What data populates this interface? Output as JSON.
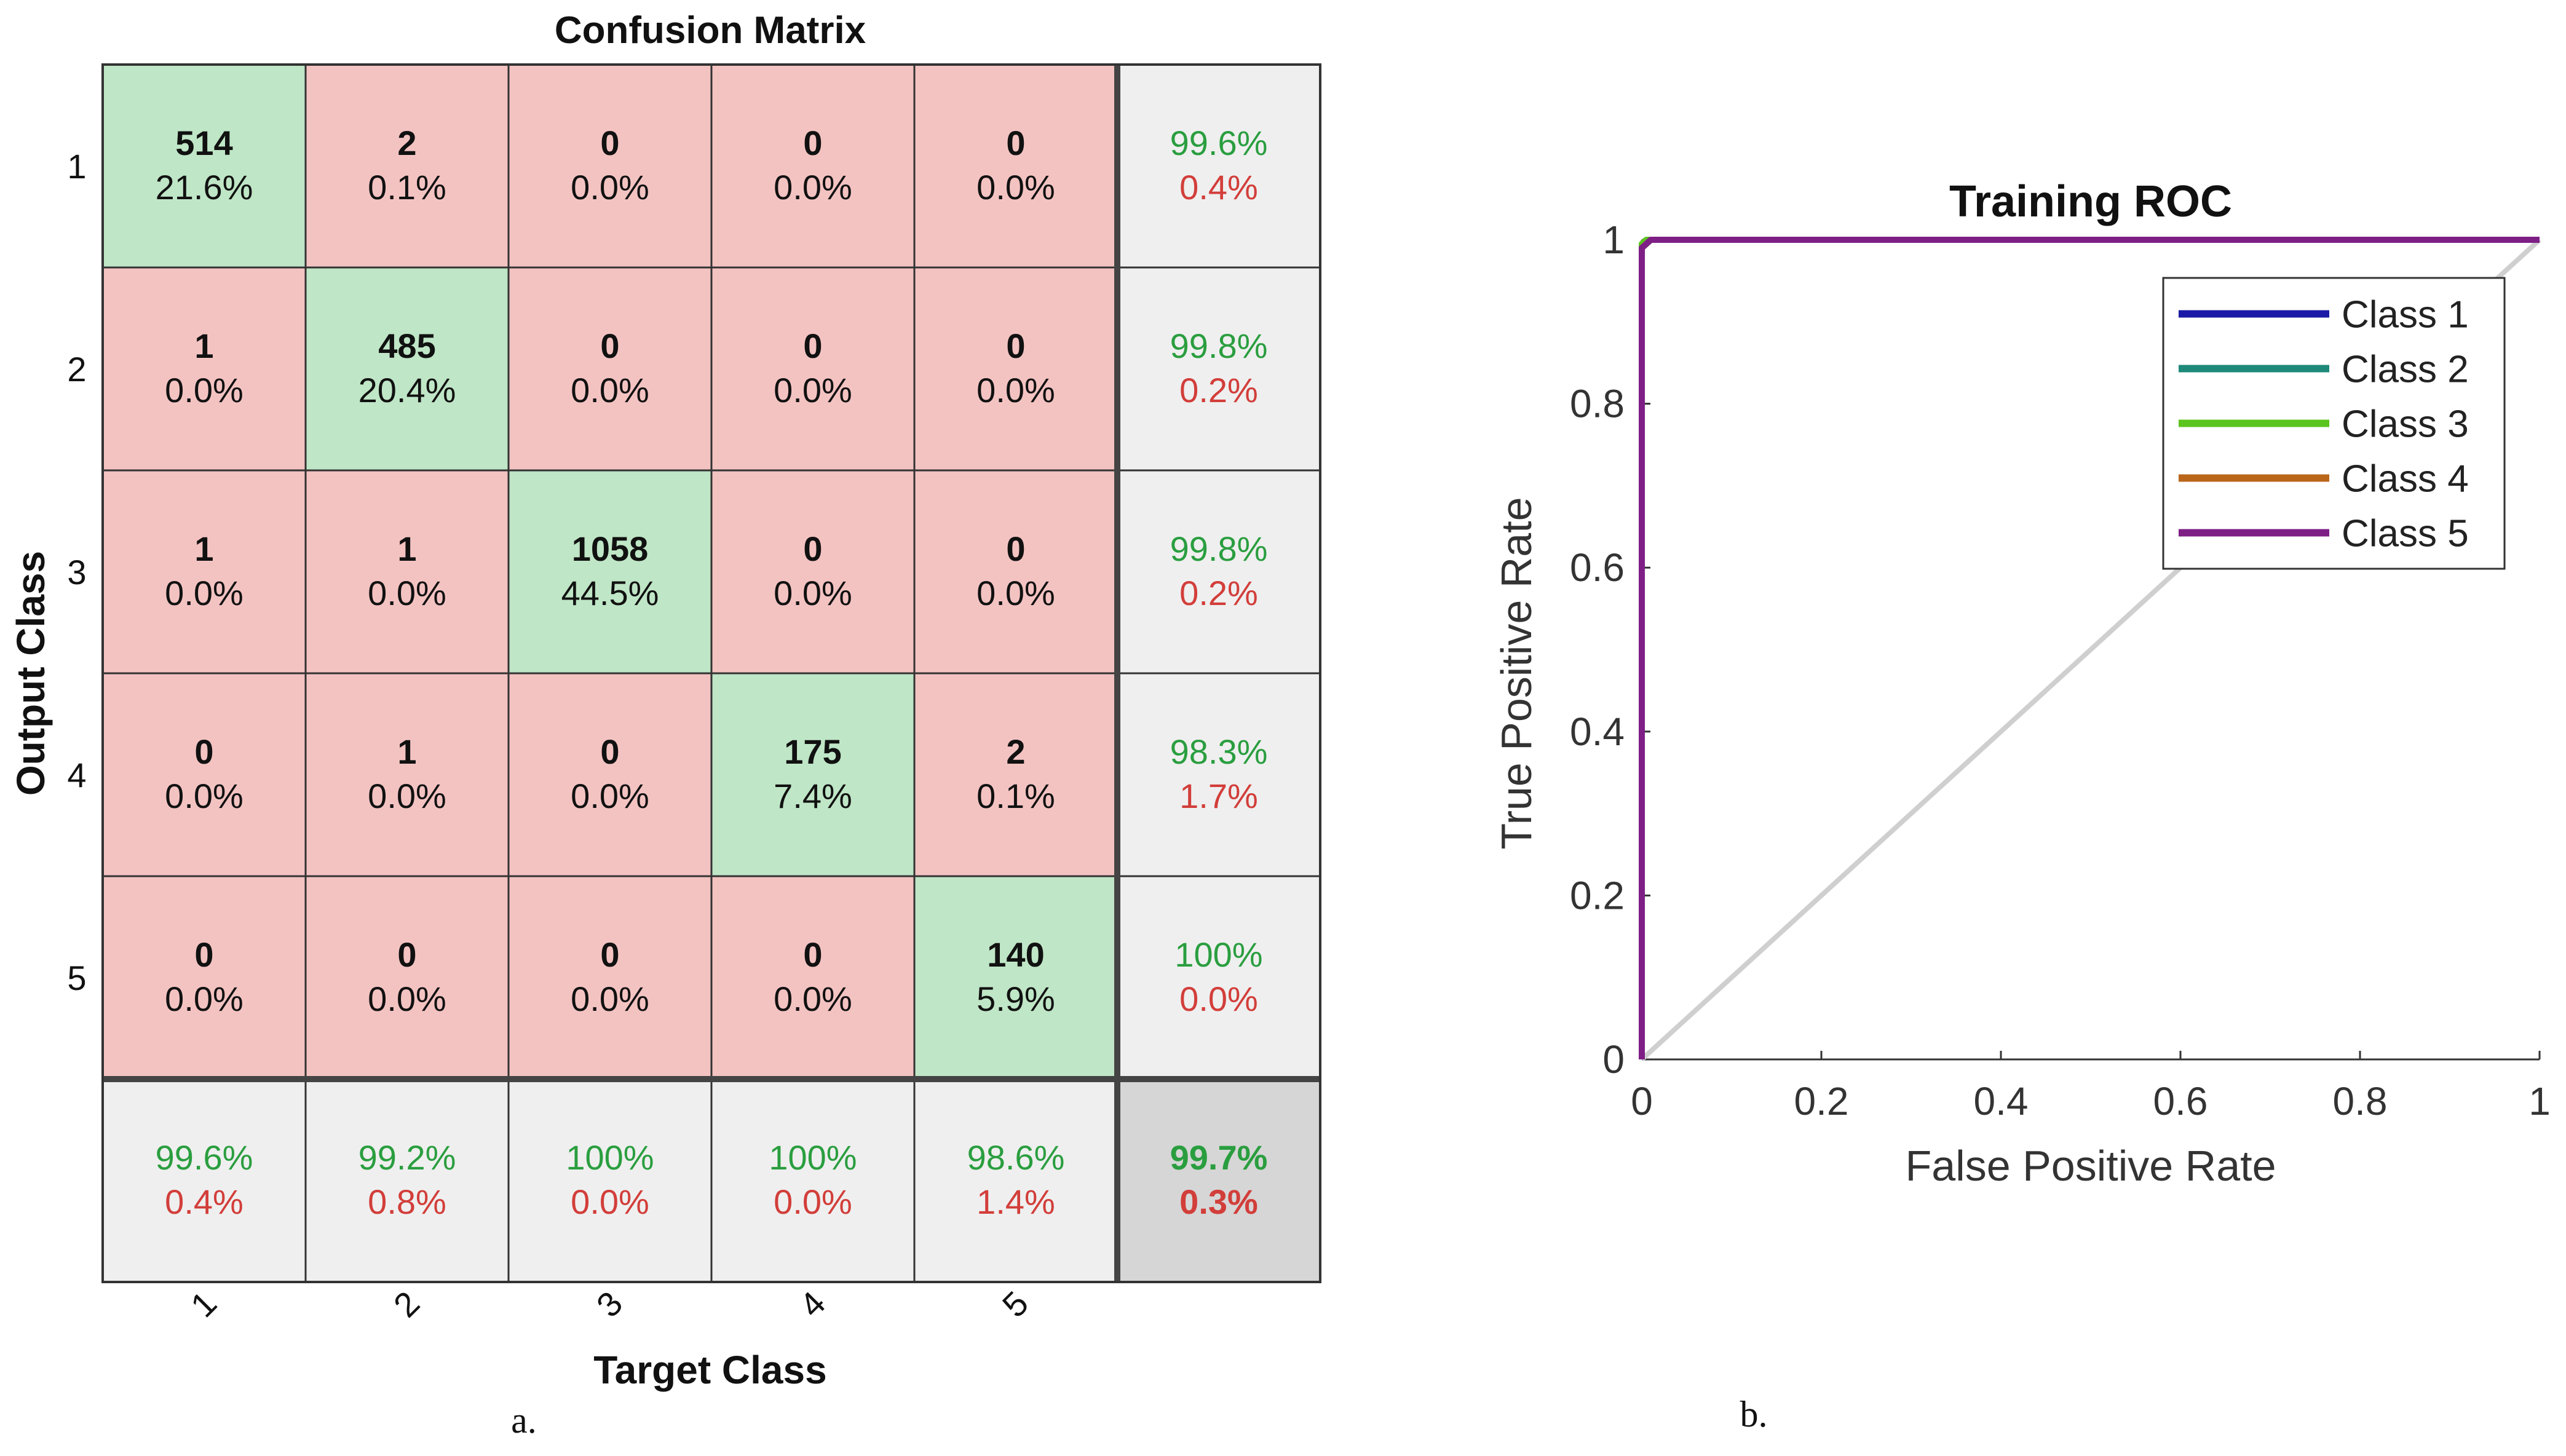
{
  "figure": {
    "panel_a_caption": "a.",
    "panel_b_caption": "b."
  },
  "colors": {
    "correct_cell": "#bfe6c6",
    "error_cell": "#f3c3c2",
    "summary_cell": "#efefef",
    "total_cell": "#d6d6d6",
    "pct_green": "#2a9e3f",
    "pct_red": "#d23e3a",
    "grid_line": "#333333",
    "diagonal_ref": "#cfcfcf"
  },
  "chart_data": [
    {
      "type": "table",
      "title": "Confusion Matrix",
      "xlabel": "Target Class",
      "ylabel": "Output Class",
      "row_labels": [
        "1",
        "2",
        "3",
        "4",
        "5"
      ],
      "col_labels": [
        "1",
        "2",
        "3",
        "4",
        "5"
      ],
      "cells": [
        [
          {
            "count": "514",
            "pct": "21.6%"
          },
          {
            "count": "2",
            "pct": "0.1%"
          },
          {
            "count": "0",
            "pct": "0.0%"
          },
          {
            "count": "0",
            "pct": "0.0%"
          },
          {
            "count": "0",
            "pct": "0.0%"
          }
        ],
        [
          {
            "count": "1",
            "pct": "0.0%"
          },
          {
            "count": "485",
            "pct": "20.4%"
          },
          {
            "count": "0",
            "pct": "0.0%"
          },
          {
            "count": "0",
            "pct": "0.0%"
          },
          {
            "count": "0",
            "pct": "0.0%"
          }
        ],
        [
          {
            "count": "1",
            "pct": "0.0%"
          },
          {
            "count": "1",
            "pct": "0.0%"
          },
          {
            "count": "1058",
            "pct": "44.5%"
          },
          {
            "count": "0",
            "pct": "0.0%"
          },
          {
            "count": "0",
            "pct": "0.0%"
          }
        ],
        [
          {
            "count": "0",
            "pct": "0.0%"
          },
          {
            "count": "1",
            "pct": "0.0%"
          },
          {
            "count": "0",
            "pct": "0.0%"
          },
          {
            "count": "175",
            "pct": "7.4%"
          },
          {
            "count": "2",
            "pct": "0.1%"
          }
        ],
        [
          {
            "count": "0",
            "pct": "0.0%"
          },
          {
            "count": "0",
            "pct": "0.0%"
          },
          {
            "count": "0",
            "pct": "0.0%"
          },
          {
            "count": "0",
            "pct": "0.0%"
          },
          {
            "count": "140",
            "pct": "5.9%"
          }
        ]
      ],
      "row_summary": [
        {
          "correct": "99.6%",
          "error": "0.4%"
        },
        {
          "correct": "99.8%",
          "error": "0.2%"
        },
        {
          "correct": "99.8%",
          "error": "0.2%"
        },
        {
          "correct": "98.3%",
          "error": "1.7%"
        },
        {
          "correct": "100%",
          "error": "0.0%"
        }
      ],
      "col_summary": [
        {
          "correct": "99.6%",
          "error": "0.4%"
        },
        {
          "correct": "99.2%",
          "error": "0.8%"
        },
        {
          "correct": "100%",
          "error": "0.0%"
        },
        {
          "correct": "100%",
          "error": "0.0%"
        },
        {
          "correct": "98.6%",
          "error": "1.4%"
        }
      ],
      "total": {
        "correct": "99.7%",
        "error": "0.3%"
      }
    },
    {
      "type": "line",
      "title": "Training ROC",
      "xlabel": "False Positive Rate",
      "ylabel": "True Positive Rate",
      "xlim": [
        0,
        1
      ],
      "ylim": [
        0,
        1
      ],
      "xticks": [
        "0",
        "0.2",
        "0.4",
        "0.6",
        "0.8",
        "1"
      ],
      "yticks": [
        "0",
        "0.2",
        "0.4",
        "0.6",
        "0.8",
        "1"
      ],
      "legend_position": "top-right",
      "reference_line": {
        "x": [
          0,
          1
        ],
        "y": [
          0,
          1
        ]
      },
      "series": [
        {
          "name": "Class 1",
          "color": "#1a1aa6",
          "x": [
            0,
            0,
            0.01,
            1
          ],
          "y": [
            0,
            0.99,
            1,
            1
          ]
        },
        {
          "name": "Class 2",
          "color": "#1d8a7a",
          "x": [
            0,
            0,
            0.01,
            1
          ],
          "y": [
            0,
            0.99,
            1,
            1
          ]
        },
        {
          "name": "Class 3",
          "color": "#5cc41f",
          "x": [
            0,
            0,
            0.005,
            1
          ],
          "y": [
            0,
            0.995,
            1,
            1
          ]
        },
        {
          "name": "Class 4",
          "color": "#b9661a",
          "x": [
            0,
            0,
            0.01,
            1
          ],
          "y": [
            0,
            0.99,
            1,
            1
          ]
        },
        {
          "name": "Class 5",
          "color": "#7e1f86",
          "x": [
            0,
            0,
            0.01,
            1
          ],
          "y": [
            0,
            0.99,
            1,
            1
          ]
        }
      ]
    }
  ]
}
